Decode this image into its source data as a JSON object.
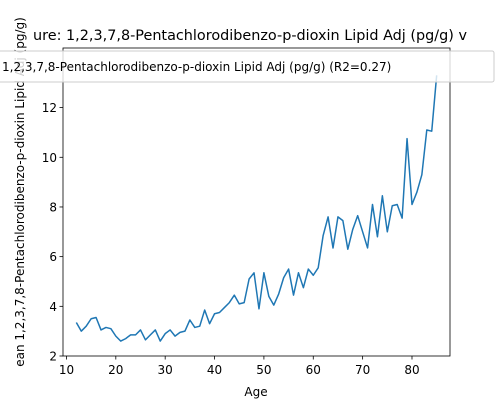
{
  "chart_data": {
    "type": "line",
    "title": "ure: 1,2,3,7,8-Pentachlorodibenzo-p-dioxin Lipid Adj (pg/g) v",
    "xlabel": "Age",
    "ylabel": "ean 1,2,3,7,8-Pentachlorodibenzo-p-dioxin Lipid Adj (pg/g)",
    "xlim": [
      9.3,
      87.7
    ],
    "ylim": [
      2,
      14.4
    ],
    "x_ticks": [
      10,
      20,
      30,
      40,
      50,
      60,
      70,
      80
    ],
    "y_ticks": [
      2,
      4,
      6,
      8,
      10,
      12
    ],
    "grid": false,
    "legend_position": "top-center",
    "series": [
      {
        "name": "1,2,3,7,8-Pentachlorodibenzo-p-dioxin Lipid Adj (pg/g) (R2=0.27)",
        "color": "#1f77b4",
        "x": [
          12,
          13,
          14,
          15,
          16,
          17,
          18,
          19,
          20,
          21,
          22,
          23,
          24,
          25,
          26,
          27,
          28,
          29,
          30,
          31,
          32,
          33,
          34,
          35,
          36,
          37,
          38,
          39,
          40,
          41,
          42,
          43,
          44,
          45,
          46,
          47,
          48,
          49,
          50,
          51,
          52,
          53,
          54,
          55,
          56,
          57,
          58,
          59,
          60,
          61,
          62,
          63,
          64,
          65,
          66,
          67,
          68,
          69,
          70,
          71,
          72,
          73,
          74,
          75,
          76,
          77,
          78,
          79,
          80,
          81,
          82,
          83,
          84,
          85
        ],
        "y": [
          3.35,
          3.0,
          3.2,
          3.5,
          3.55,
          3.05,
          3.15,
          3.1,
          2.8,
          2.6,
          2.7,
          2.85,
          2.85,
          3.05,
          2.65,
          2.85,
          3.05,
          2.6,
          2.9,
          3.05,
          2.8,
          2.95,
          3.0,
          3.45,
          3.15,
          3.2,
          3.85,
          3.3,
          3.7,
          3.75,
          3.95,
          4.15,
          4.45,
          4.1,
          4.15,
          5.1,
          5.35,
          3.9,
          5.35,
          4.4,
          4.05,
          4.5,
          5.15,
          5.5,
          4.45,
          5.35,
          4.75,
          5.5,
          5.25,
          5.55,
          6.85,
          7.6,
          6.35,
          7.6,
          7.45,
          6.3,
          7.1,
          7.65,
          7.0,
          6.35,
          8.1,
          6.8,
          8.45,
          7.0,
          8.05,
          8.1,
          7.55,
          10.75,
          8.1,
          8.6,
          9.3,
          11.1,
          11.05,
          13.3
        ]
      }
    ]
  }
}
